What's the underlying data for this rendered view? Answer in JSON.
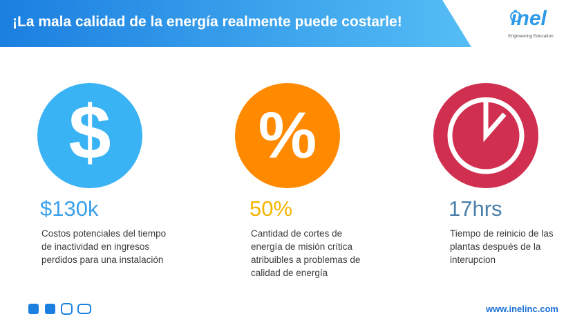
{
  "header": {
    "title": "¡La mala calidad de la energía realmente puede costarle!"
  },
  "logo": {
    "name": "inel",
    "tagline": "Engineering Education"
  },
  "stats": [
    {
      "icon": "$",
      "value": "$130k",
      "description": [
        "Costos potenciales del tiempo",
        "de inactividad en ingresos",
        "perdidos para una instalación"
      ]
    },
    {
      "icon": "%",
      "value": "50%",
      "description": [
        "Cantidad de cortes de",
        "energía de misión crítica",
        "atribuibles a problemas de",
        "calidad de energía"
      ]
    },
    {
      "value": "17hrs",
      "description": [
        "Tiempo de reinicio de las",
        "plantas después de la",
        "interupcion"
      ]
    }
  ],
  "footer": {
    "url": "www.inelinc.com"
  }
}
